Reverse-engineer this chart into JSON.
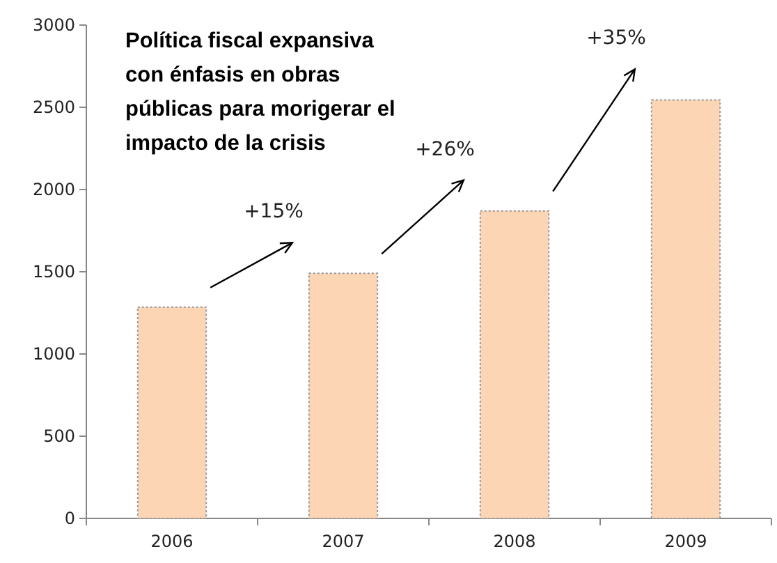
{
  "chart_data": {
    "type": "bar",
    "categories": [
      "2006",
      "2007",
      "2008",
      "2009"
    ],
    "values": [
      1285,
      1490,
      1870,
      2545
    ],
    "color": "#fcd5b5",
    "ylim": [
      0,
      3000
    ],
    "yticks": [
      0,
      500,
      1000,
      1500,
      2000,
      2500,
      3000
    ],
    "grid": false,
    "annotations": [
      "Política fiscal expansiva con énfasis en obras públicas para morigerar el impacto de la crisis",
      "+15%",
      "+26%",
      "+35%"
    ]
  }
}
